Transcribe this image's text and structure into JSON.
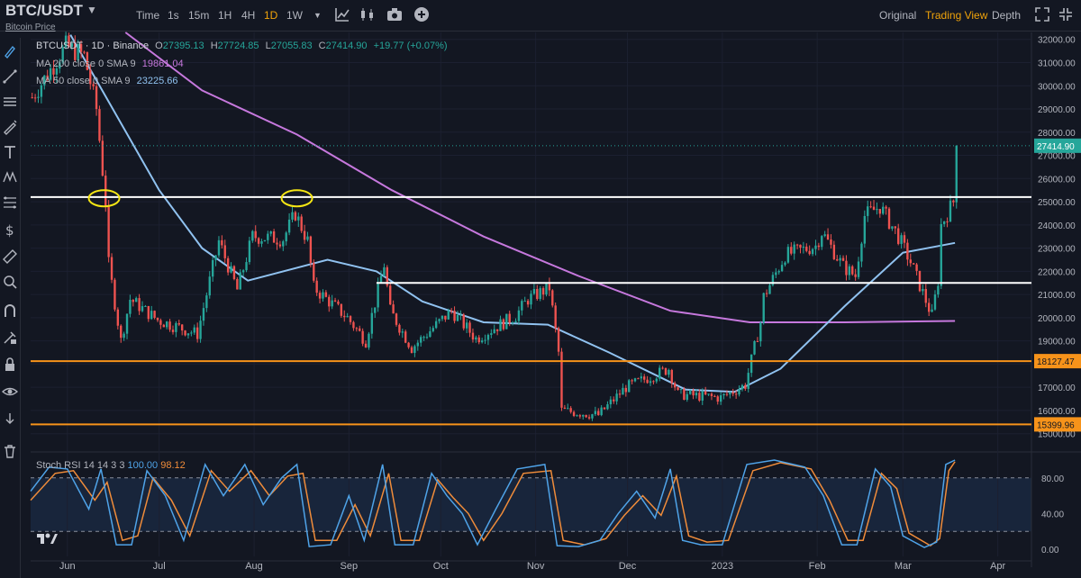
{
  "header": {
    "symbol": "BTC/USDT",
    "subtitle": "Bitcoin Price",
    "timeframes": [
      "Time",
      "1s",
      "15m",
      "1H",
      "4H",
      "1D",
      "1W"
    ],
    "active_timeframe": "1D",
    "view_tabs": [
      "Original",
      "Trading View",
      "Depth"
    ],
    "active_view": "Trading View"
  },
  "legend": {
    "title": "BTCUSDT · 1D · Binance",
    "ohlc": [
      {
        "k": "O",
        "v": "27395.13"
      },
      {
        "k": "H",
        "v": "27724.85"
      },
      {
        "k": "L",
        "v": "27055.83"
      },
      {
        "k": "C",
        "v": "27414.90"
      }
    ],
    "change": "+19.77 (+0.07%)",
    "ma200_label": "MA 200 close 0 SMA 9",
    "ma200_value": "19861.04",
    "ma50_label": "MA 50 close 0 SMA 9",
    "ma50_value": "23225.66"
  },
  "stoch": {
    "label": "Stoch RSI 14 14 3 3",
    "k_value": "100.00",
    "d_value": "98.12"
  },
  "colors": {
    "background": "#131722",
    "up": "#26a69a",
    "down": "#ef5350",
    "ma200": "#c678dd",
    "ma50": "#90c2f0",
    "support": "#f7931a",
    "resistance": "#ffffff",
    "stoch_k": "#4fa3e8",
    "stoch_d": "#f08c3a",
    "last_price": "#26a69a",
    "highlight": "#f5e614"
  },
  "chart_data": {
    "type": "candlestick",
    "symbol": "BTCUSDT",
    "interval": "1D",
    "exchange": "Binance",
    "x_ticks": [
      "Jun",
      "Jul",
      "Aug",
      "Sep",
      "Oct",
      "Nov",
      "Dec",
      "2023",
      "Feb",
      "Mar",
      "Apr"
    ],
    "y_ticks": [
      "32000.00",
      "31000.00",
      "30000.00",
      "29000.00",
      "28000.00",
      "27000.00",
      "26000.00",
      "25000.00",
      "24000.00",
      "23000.00",
      "22000.00",
      "21000.00",
      "20000.00",
      "19000.00",
      "18000.00",
      "17000.00",
      "16000.00",
      "15000.00"
    ],
    "ylim": [
      14600,
      32300
    ],
    "price_labels": [
      {
        "value": 27414.9,
        "text": "27414.90",
        "kind": "last"
      },
      {
        "value": 18127.47,
        "text": "18127.47",
        "kind": "support"
      },
      {
        "value": 15399.96,
        "text": "15399.96",
        "kind": "support"
      }
    ],
    "horizontal_levels": [
      {
        "value": 25200,
        "kind": "resistance",
        "from": "2022-05-20",
        "to": "end"
      },
      {
        "value": 21500,
        "kind": "resistance",
        "from": "2022-09-10",
        "to": "end"
      },
      {
        "value": 18127.47,
        "kind": "support",
        "from": "start",
        "to": "end"
      },
      {
        "value": 15399.96,
        "kind": "support",
        "from": "start",
        "to": "end"
      }
    ],
    "markers": [
      {
        "date": "2022-06-13",
        "value": 25150,
        "shape": "ellipse"
      },
      {
        "date": "2022-08-15",
        "value": 25150,
        "shape": "ellipse"
      }
    ],
    "price_path": [
      [
        "2022-05-20",
        29500
      ],
      [
        "2022-05-31",
        31700
      ],
      [
        "2022-06-06",
        31300
      ],
      [
        "2022-06-10",
        29000
      ],
      [
        "2022-06-13",
        25000
      ],
      [
        "2022-06-14",
        22300
      ],
      [
        "2022-06-18",
        19000
      ],
      [
        "2022-06-21",
        20800
      ],
      [
        "2022-06-30",
        19900
      ],
      [
        "2022-07-13",
        19300
      ],
      [
        "2022-07-20",
        23300
      ],
      [
        "2022-07-26",
        21200
      ],
      [
        "2022-07-31",
        23500
      ],
      [
        "2022-08-10",
        23400
      ],
      [
        "2022-08-14",
        24500
      ],
      [
        "2022-08-18",
        23300
      ],
      [
        "2022-08-20",
        21300
      ],
      [
        "2022-08-31",
        20000
      ],
      [
        "2022-09-06",
        19000
      ],
      [
        "2022-09-12",
        22300
      ],
      [
        "2022-09-14",
        20300
      ],
      [
        "2022-09-21",
        18700
      ],
      [
        "2022-10-04",
        20300
      ],
      [
        "2022-10-12",
        19100
      ],
      [
        "2022-10-25",
        20100
      ],
      [
        "2022-10-29",
        20800
      ],
      [
        "2022-11-05",
        21300
      ],
      [
        "2022-11-08",
        18500
      ],
      [
        "2022-11-09",
        16000
      ],
      [
        "2022-11-21",
        15800
      ],
      [
        "2022-11-30",
        17000
      ],
      [
        "2022-12-14",
        17800
      ],
      [
        "2022-12-17",
        16700
      ],
      [
        "2022-12-31",
        16550
      ],
      [
        "2023-01-08",
        17100
      ],
      [
        "2023-01-13",
        19800
      ],
      [
        "2023-01-14",
        20900
      ],
      [
        "2023-01-21",
        22700
      ],
      [
        "2023-01-31",
        23100
      ],
      [
        "2023-02-02",
        23700
      ],
      [
        "2023-02-09",
        22200
      ],
      [
        "2023-02-13",
        21800
      ],
      [
        "2023-02-16",
        24400
      ],
      [
        "2023-02-21",
        24800
      ],
      [
        "2023-02-27",
        23500
      ],
      [
        "2023-03-03",
        22400
      ],
      [
        "2023-03-09",
        20400
      ],
      [
        "2023-03-10",
        20100
      ],
      [
        "2023-03-12",
        21600
      ],
      [
        "2023-03-13",
        24000
      ],
      [
        "2023-03-17",
        25000
      ],
      [
        "2023-03-18",
        27414.9
      ]
    ],
    "ma200_path": [
      [
        "2022-06-20",
        32300
      ],
      [
        "2022-07-15",
        29800
      ],
      [
        "2022-08-15",
        27900
      ],
      [
        "2022-09-15",
        25500
      ],
      [
        "2022-10-15",
        23500
      ],
      [
        "2022-11-15",
        21800
      ],
      [
        "2022-12-15",
        20300
      ],
      [
        "2023-01-10",
        19800
      ],
      [
        "2023-02-10",
        19800
      ],
      [
        "2023-03-18",
        19861.04
      ]
    ],
    "ma50_path": [
      [
        "2022-06-02",
        32200
      ],
      [
        "2022-06-15",
        29200
      ],
      [
        "2022-07-01",
        25500
      ],
      [
        "2022-07-15",
        23000
      ],
      [
        "2022-07-30",
        21600
      ],
      [
        "2022-08-25",
        22500
      ],
      [
        "2022-09-10",
        22000
      ],
      [
        "2022-09-25",
        20700
      ],
      [
        "2022-10-15",
        19800
      ],
      [
        "2022-11-05",
        19700
      ],
      [
        "2022-11-25",
        18500
      ],
      [
        "2022-12-20",
        16900
      ],
      [
        "2023-01-05",
        16800
      ],
      [
        "2023-01-20",
        17800
      ],
      [
        "2023-02-10",
        20500
      ],
      [
        "2023-03-01",
        22800
      ],
      [
        "2023-03-18",
        23225.66
      ]
    ],
    "stoch_rsi": {
      "ylim": [
        -8,
        105
      ],
      "y_ticks": [
        "80.00",
        "40.00",
        "0.00"
      ],
      "levels": [
        80,
        20
      ],
      "k_last": 100.0,
      "d_last": 98.12,
      "k_path": [
        [
          "2022-05-20",
          65
        ],
        [
          "2022-05-26",
          92
        ],
        [
          "2022-06-01",
          90
        ],
        [
          "2022-06-08",
          45
        ],
        [
          "2022-06-12",
          90
        ],
        [
          "2022-06-17",
          5
        ],
        [
          "2022-06-22",
          5
        ],
        [
          "2022-06-27",
          88
        ],
        [
          "2022-07-03",
          60
        ],
        [
          "2022-07-09",
          10
        ],
        [
          "2022-07-16",
          95
        ],
        [
          "2022-07-22",
          60
        ],
        [
          "2022-07-29",
          95
        ],
        [
          "2022-08-04",
          50
        ],
        [
          "2022-08-10",
          80
        ],
        [
          "2022-08-15",
          95
        ],
        [
          "2022-08-19",
          3
        ],
        [
          "2022-08-26",
          5
        ],
        [
          "2022-09-01",
          60
        ],
        [
          "2022-09-06",
          10
        ],
        [
          "2022-09-12",
          95
        ],
        [
          "2022-09-16",
          5
        ],
        [
          "2022-09-22",
          5
        ],
        [
          "2022-09-28",
          85
        ],
        [
          "2022-10-03",
          60
        ],
        [
          "2022-10-08",
          40
        ],
        [
          "2022-10-13",
          5
        ],
        [
          "2022-10-19",
          45
        ],
        [
          "2022-10-26",
          90
        ],
        [
          "2022-11-04",
          95
        ],
        [
          "2022-11-08",
          4
        ],
        [
          "2022-11-15",
          3
        ],
        [
          "2022-11-22",
          10
        ],
        [
          "2022-11-28",
          40
        ],
        [
          "2022-12-04",
          65
        ],
        [
          "2022-12-10",
          35
        ],
        [
          "2022-12-15",
          90
        ],
        [
          "2022-12-19",
          10
        ],
        [
          "2022-12-25",
          5
        ],
        [
          "2023-01-01",
          5
        ],
        [
          "2023-01-09",
          95
        ],
        [
          "2023-01-18",
          100
        ],
        [
          "2023-01-28",
          92
        ],
        [
          "2023-02-03",
          60
        ],
        [
          "2023-02-09",
          5
        ],
        [
          "2023-02-14",
          5
        ],
        [
          "2023-02-20",
          90
        ],
        [
          "2023-02-25",
          70
        ],
        [
          "2023-03-01",
          15
        ],
        [
          "2023-03-08",
          2
        ],
        [
          "2023-03-12",
          8
        ],
        [
          "2023-03-15",
          95
        ],
        [
          "2023-03-18",
          100
        ]
      ],
      "d_path": [
        [
          "2022-05-20",
          55
        ],
        [
          "2022-05-28",
          85
        ],
        [
          "2022-06-03",
          88
        ],
        [
          "2022-06-10",
          55
        ],
        [
          "2022-06-14",
          75
        ],
        [
          "2022-06-19",
          10
        ],
        [
          "2022-06-24",
          15
        ],
        [
          "2022-06-29",
          80
        ],
        [
          "2022-07-05",
          55
        ],
        [
          "2022-07-11",
          15
        ],
        [
          "2022-07-18",
          88
        ],
        [
          "2022-07-24",
          65
        ],
        [
          "2022-07-31",
          88
        ],
        [
          "2022-08-06",
          60
        ],
        [
          "2022-08-12",
          82
        ],
        [
          "2022-08-17",
          85
        ],
        [
          "2022-08-21",
          10
        ],
        [
          "2022-08-28",
          10
        ],
        [
          "2022-09-03",
          50
        ],
        [
          "2022-09-08",
          15
        ],
        [
          "2022-09-14",
          85
        ],
        [
          "2022-09-18",
          10
        ],
        [
          "2022-09-24",
          10
        ],
        [
          "2022-09-30",
          78
        ],
        [
          "2022-10-05",
          58
        ],
        [
          "2022-10-10",
          40
        ],
        [
          "2022-10-15",
          10
        ],
        [
          "2022-10-21",
          40
        ],
        [
          "2022-10-28",
          85
        ],
        [
          "2022-11-06",
          88
        ],
        [
          "2022-11-10",
          10
        ],
        [
          "2022-11-17",
          5
        ],
        [
          "2022-11-24",
          12
        ],
        [
          "2022-11-30",
          38
        ],
        [
          "2022-12-06",
          60
        ],
        [
          "2022-12-12",
          38
        ],
        [
          "2022-12-17",
          82
        ],
        [
          "2022-12-21",
          15
        ],
        [
          "2022-12-27",
          8
        ],
        [
          "2023-01-03",
          10
        ],
        [
          "2023-01-11",
          88
        ],
        [
          "2023-01-20",
          97
        ],
        [
          "2023-01-30",
          90
        ],
        [
          "2023-02-05",
          55
        ],
        [
          "2023-02-11",
          10
        ],
        [
          "2023-02-16",
          10
        ],
        [
          "2023-02-22",
          85
        ],
        [
          "2023-02-27",
          68
        ],
        [
          "2023-03-03",
          18
        ],
        [
          "2023-03-10",
          4
        ],
        [
          "2023-03-13",
          12
        ],
        [
          "2023-03-16",
          88
        ],
        [
          "2023-03-18",
          98.12
        ]
      ]
    }
  }
}
